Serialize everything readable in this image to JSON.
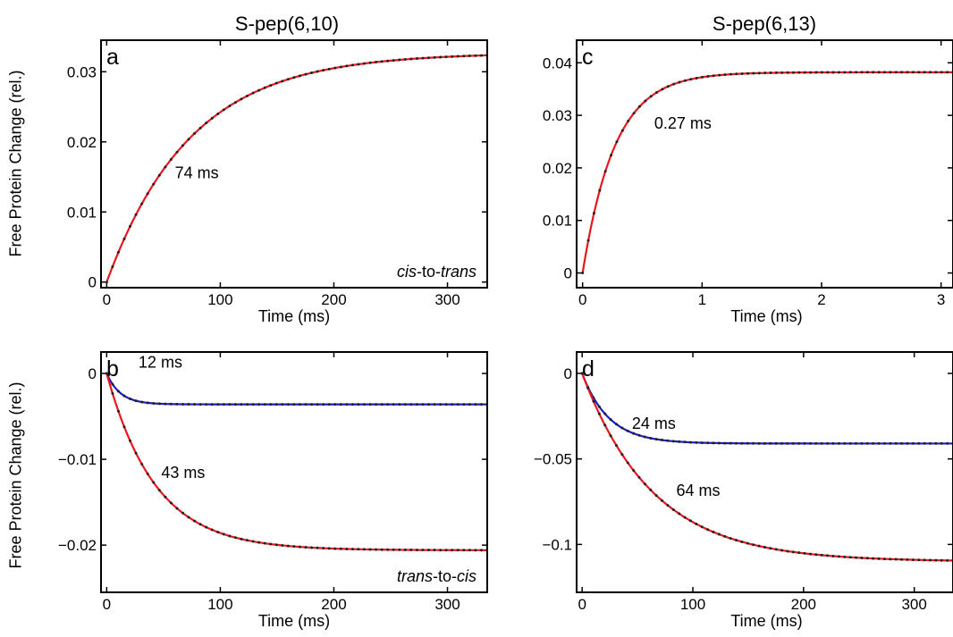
{
  "figure": {
    "column_titles": [
      "S-pep(6,10)",
      "S-pep(6,13)"
    ],
    "row_ylabel": "Free Protein Change (rel.)"
  },
  "chart_data": [
    {
      "panel": "a",
      "type": "line",
      "xlabel": "Time (ms)",
      "ylabel": "Free Protein Change (rel.)",
      "xlim": [
        -5,
        335
      ],
      "ylim": [
        -0.0008,
        0.0345
      ],
      "xticks": [
        0,
        100,
        200,
        300
      ],
      "xtick_labels": [
        "0",
        "100",
        "200",
        "300"
      ],
      "yticks": [
        0,
        0.01,
        0.02,
        0.03
      ],
      "ytick_labels": [
        "0",
        "0.01",
        "0.02",
        "0.03"
      ],
      "corner_note": {
        "parts": [
          {
            "text": "cis",
            "italic": true
          },
          {
            "text": "-to-",
            "italic": false
          },
          {
            "text": "trans",
            "italic": true
          }
        ]
      },
      "series": [
        {
          "color": "#e8171d",
          "model": "exp_rise",
          "amplitude": 0.0327,
          "tau_ms": 74,
          "x_start": 0,
          "x_end": 335,
          "label": "74 ms",
          "label_at": [
            60,
            0.0148
          ]
        }
      ]
    },
    {
      "panel": "b",
      "type": "line",
      "xlabel": "Time (ms)",
      "ylabel": "Free Protein Change (rel.)",
      "xlim": [
        -5,
        335
      ],
      "ylim": [
        -0.0255,
        0.0025
      ],
      "xticks": [
        0,
        100,
        200,
        300
      ],
      "xtick_labels": [
        "0",
        "100",
        "200",
        "300"
      ],
      "yticks": [
        0,
        -0.01,
        -0.02
      ],
      "ytick_labels": [
        "0",
        "−0.01",
        "−0.02"
      ],
      "corner_note": {
        "parts": [
          {
            "text": "trans",
            "italic": true
          },
          {
            "text": "-to-",
            "italic": false
          },
          {
            "text": "cis",
            "italic": true
          }
        ]
      },
      "series": [
        {
          "color": "#1a1ad0",
          "model": "exp_decay",
          "amplitude": -0.0036,
          "tau_ms": 12,
          "x_start": 0,
          "x_end": 335,
          "label": "12 ms",
          "label_at": [
            28,
            0.0007
          ]
        },
        {
          "color": "#e8171d",
          "model": "exp_decay",
          "amplitude": -0.0206,
          "tau_ms": 43,
          "x_start": 0,
          "x_end": 335,
          "label": "43 ms",
          "label_at": [
            48,
            -0.0122
          ]
        }
      ]
    },
    {
      "panel": "c",
      "type": "line",
      "xlabel": "Time (ms)",
      "ylabel": "",
      "xlim": [
        -0.05,
        3.1
      ],
      "ylim": [
        -0.0028,
        0.0443
      ],
      "xticks": [
        0,
        1,
        2,
        3
      ],
      "xtick_labels": [
        "0",
        "1",
        "2",
        "3"
      ],
      "yticks": [
        0,
        0.01,
        0.02,
        0.03,
        0.04
      ],
      "ytick_labels": [
        "0",
        "0.01",
        "0.02",
        "0.03",
        "0.04"
      ],
      "series": [
        {
          "color": "#e8171d",
          "model": "exp_rise",
          "amplitude": 0.0382,
          "tau_ms": 0.27,
          "x_start": 0,
          "x_end": 3.1,
          "label": "0.27 ms",
          "label_at": [
            0.6,
            0.0275
          ]
        }
      ]
    },
    {
      "panel": "d",
      "type": "line",
      "xlabel": "Time (ms)",
      "ylabel": "",
      "xlim": [
        -5,
        335
      ],
      "ylim": [
        -0.128,
        0.0125
      ],
      "xticks": [
        0,
        100,
        200,
        300
      ],
      "xtick_labels": [
        "0",
        "100",
        "200",
        "300"
      ],
      "yticks": [
        0,
        -0.05,
        -0.1
      ],
      "ytick_labels": [
        "0",
        "−0.05",
        "−0.1"
      ],
      "series": [
        {
          "color": "#1a1ad0",
          "model": "exp_decay",
          "amplitude": -0.041,
          "tau_ms": 24,
          "x_start": 0,
          "x_end": 335,
          "label": "24 ms",
          "label_at": [
            45,
            -0.0325
          ]
        },
        {
          "color": "#e8171d",
          "model": "exp_decay",
          "amplitude": -0.11,
          "tau_ms": 64,
          "x_start": 0,
          "x_end": 335,
          "label": "64 ms",
          "label_at": [
            85,
            -0.0715
          ]
        }
      ]
    }
  ]
}
